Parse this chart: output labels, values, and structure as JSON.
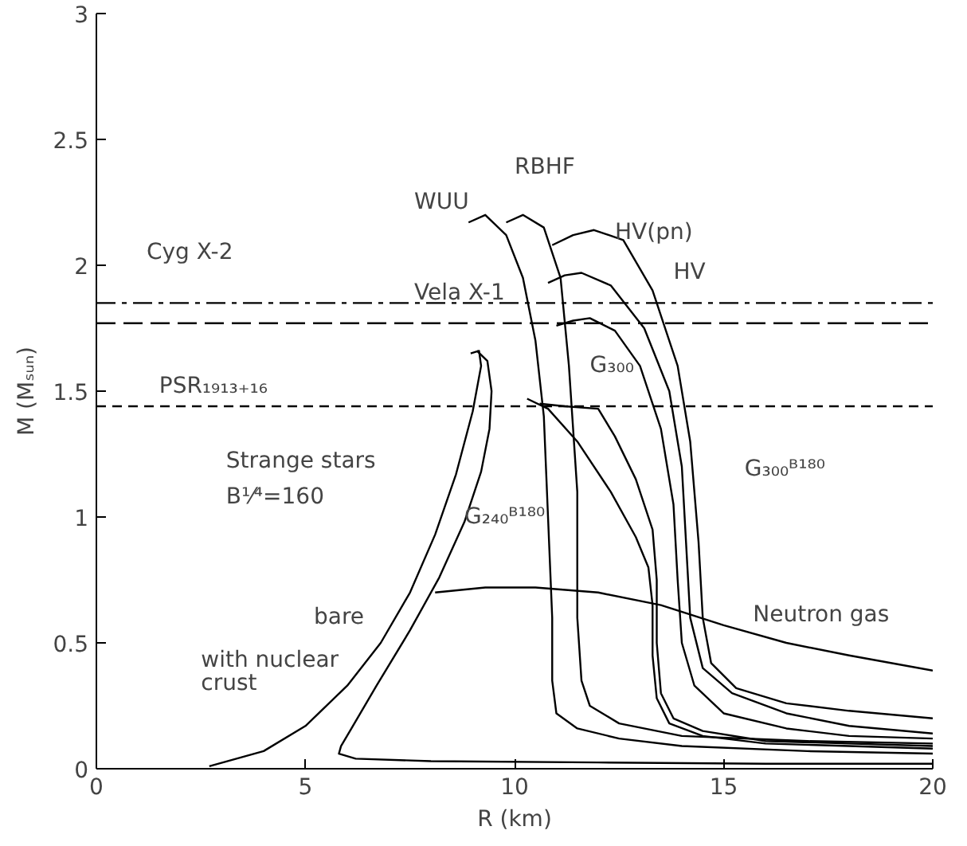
{
  "chart_data": {
    "type": "line",
    "xlabel": "R (km)",
    "ylabel": "M (Mₛᵤₙ)",
    "xlim": [
      0,
      20
    ],
    "ylim": [
      0,
      3
    ],
    "xticks": [
      0,
      5,
      10,
      15,
      20
    ],
    "yticks": [
      0,
      0.5,
      1,
      1.5,
      2,
      2.5,
      3
    ],
    "grid": false,
    "marker": "none",
    "line_style": "solid",
    "series": [
      {
        "color": "#000000",
        "x": [
          8.9,
          9.3,
          9.8,
          10.2,
          10.5,
          10.7,
          10.8,
          10.9,
          10.9,
          11.0,
          11.5,
          12.5,
          14,
          17,
          20
        ],
        "values": [
          2.17,
          2.2,
          2.12,
          1.95,
          1.7,
          1.4,
          1.0,
          0.6,
          0.35,
          0.22,
          0.16,
          0.12,
          0.09,
          0.07,
          0.06
        ]
      },
      {
        "color": "#000000",
        "x": [
          9.8,
          10.2,
          10.7,
          11.1,
          11.3,
          11.5,
          11.5,
          11.6,
          11.8,
          12.5,
          14,
          17,
          20
        ],
        "values": [
          2.17,
          2.2,
          2.15,
          1.95,
          1.6,
          1.1,
          0.6,
          0.35,
          0.25,
          0.18,
          0.13,
          0.11,
          0.1
        ]
      },
      {
        "color": "#000000",
        "x": [
          10.9,
          11.4,
          11.9,
          12.6,
          13.3,
          13.9,
          14.2,
          14.4,
          14.5,
          14.7,
          15.3,
          16.5,
          18,
          20
        ],
        "values": [
          2.08,
          2.12,
          2.14,
          2.1,
          1.9,
          1.6,
          1.3,
          0.9,
          0.6,
          0.42,
          0.32,
          0.26,
          0.23,
          0.2
        ]
      },
      {
        "color": "#000000",
        "x": [
          10.8,
          11.2,
          11.6,
          12.3,
          13.1,
          13.7,
          14.0,
          14.1,
          14.2,
          14.5,
          15.2,
          16.5,
          18,
          20
        ],
        "values": [
          1.93,
          1.96,
          1.97,
          1.92,
          1.75,
          1.5,
          1.2,
          0.9,
          0.6,
          0.4,
          0.3,
          0.22,
          0.17,
          0.14
        ]
      },
      {
        "color": "#000000",
        "x": [
          11.0,
          11.4,
          11.8,
          12.4,
          13.0,
          13.5,
          13.8,
          13.9,
          14.0,
          14.3,
          15.0,
          16.5,
          18,
          20
        ],
        "values": [
          1.76,
          1.78,
          1.79,
          1.74,
          1.6,
          1.35,
          1.05,
          0.75,
          0.5,
          0.33,
          0.22,
          0.16,
          0.13,
          0.12
        ]
      },
      {
        "color": "#000000",
        "x": [
          10.6,
          11.2,
          12.0,
          12.4,
          12.9,
          13.3,
          13.4,
          13.4,
          13.5,
          13.8,
          14.5,
          16,
          18,
          20
        ],
        "values": [
          1.45,
          1.44,
          1.43,
          1.32,
          1.15,
          0.95,
          0.75,
          0.5,
          0.3,
          0.2,
          0.15,
          0.11,
          0.1,
          0.09
        ]
      },
      {
        "color": "#000000",
        "x": [
          10.3,
          10.8,
          11.5,
          12.3,
          12.9,
          13.2,
          13.3,
          13.3,
          13.4,
          13.7,
          14.5,
          16,
          18,
          20
        ],
        "values": [
          1.47,
          1.43,
          1.3,
          1.1,
          0.92,
          0.8,
          0.65,
          0.45,
          0.28,
          0.18,
          0.13,
          0.1,
          0.09,
          0.08
        ]
      },
      {
        "color": "#000000",
        "x": [
          8.1,
          9.3,
          10.5,
          12,
          13.5,
          15,
          16.5,
          18,
          20
        ],
        "values": [
          0.7,
          0.72,
          0.72,
          0.7,
          0.65,
          0.57,
          0.5,
          0.45,
          0.39
        ]
      },
      {
        "color": "#000000",
        "x": [
          2.7,
          4.0,
          5.0,
          6.0,
          6.8,
          7.5,
          8.1,
          8.6,
          9.0,
          9.2,
          9.15,
          8.95
        ],
        "values": [
          0.01,
          0.07,
          0.17,
          0.33,
          0.5,
          0.7,
          0.93,
          1.17,
          1.42,
          1.6,
          1.66,
          1.65
        ]
      },
      {
        "color": "#000000",
        "x": [
          9.1,
          9.35,
          9.45,
          9.4,
          9.2,
          8.8,
          8.2,
          7.5,
          6.7,
          6.1,
          5.85,
          5.8,
          6.2,
          8,
          12,
          16,
          20
        ],
        "values": [
          1.66,
          1.62,
          1.5,
          1.35,
          1.18,
          0.98,
          0.76,
          0.55,
          0.33,
          0.16,
          0.09,
          0.06,
          0.04,
          0.03,
          0.025,
          0.02,
          0.02
        ]
      }
    ],
    "ref_lines": [
      {
        "axis": "y",
        "value": 1.85,
        "line_style": "dashdot"
      },
      {
        "axis": "y",
        "value": 1.77,
        "line_style": "longdash"
      },
      {
        "axis": "y",
        "value": 1.44,
        "line_style": "dashed"
      }
    ],
    "annotations": [
      "Cyg X-2",
      "Vela X-1",
      "PSR₁₉₁₃₊₁₆",
      "WUU",
      "RBHF",
      "HV(pn)",
      "HV",
      "G₃₀₀",
      "G₃₀₀ᴮ¹⁸⁰",
      "G₂₄₀ᴮ¹⁸⁰",
      "Neutron gas",
      "Strange stars",
      "B¹⁄⁴=160",
      "bare",
      "with nuclear",
      "crust"
    ]
  }
}
